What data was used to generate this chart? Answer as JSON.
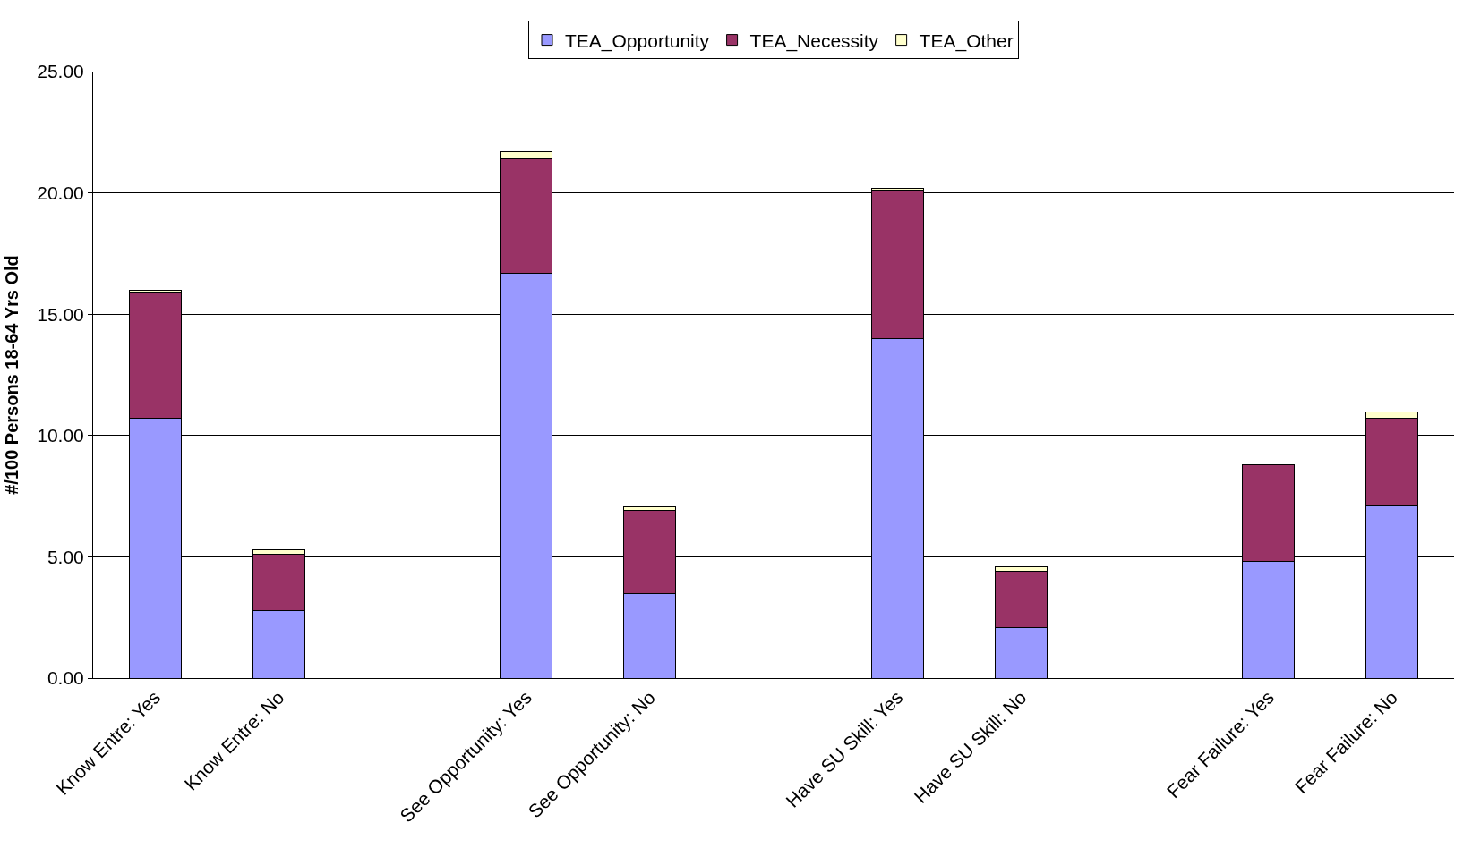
{
  "chart_data": {
    "type": "bar",
    "stacked": true,
    "ylabel": "#/100 Persons 18-64 Yrs Old",
    "categories": [
      "Know Entre: Yes",
      "Know Entre: No",
      null,
      "See Opportunity: Yes",
      "See Opportunity: No",
      null,
      "Have SU Skill: Yes",
      "Have SU Skill: No",
      null,
      "Fear Failure: Yes",
      "Fear Failure: No"
    ],
    "series": [
      {
        "name": "TEA_Opportunity",
        "color": "#9999ff",
        "values": [
          10.7,
          2.8,
          null,
          16.7,
          3.5,
          null,
          14.0,
          2.1,
          null,
          4.8,
          7.1
        ]
      },
      {
        "name": "TEA_Necessity",
        "color": "#993366",
        "values": [
          5.2,
          2.3,
          null,
          4.7,
          3.4,
          null,
          6.1,
          2.3,
          null,
          4.0,
          3.6
        ]
      },
      {
        "name": "TEA_Other",
        "color": "#ffffcc",
        "values": [
          0.1,
          0.2,
          null,
          0.3,
          0.15,
          null,
          0.1,
          0.2,
          null,
          null,
          0.27
        ]
      }
    ],
    "ylim": [
      0,
      25
    ],
    "yticks": [
      {
        "value": 0,
        "label": "0.00"
      },
      {
        "value": 5,
        "label": "5.00"
      },
      {
        "value": 10,
        "label": "10.00"
      },
      {
        "value": 15,
        "label": "15.00"
      },
      {
        "value": 20,
        "label": "20.00"
      },
      {
        "value": 25,
        "label": "25.00"
      }
    ],
    "grid": "y",
    "legend": "top"
  }
}
